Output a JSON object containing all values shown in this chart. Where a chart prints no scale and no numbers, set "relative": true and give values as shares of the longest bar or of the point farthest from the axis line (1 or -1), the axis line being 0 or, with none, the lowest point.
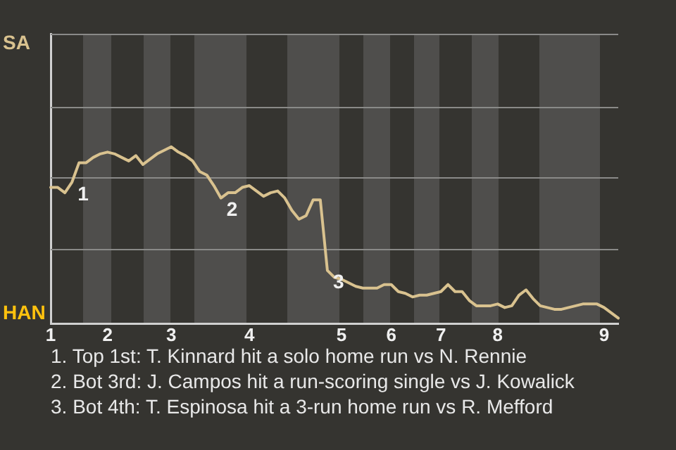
{
  "chart_data": {
    "type": "line",
    "relative": true,
    "categories": [
      "1",
      null,
      null,
      null,
      null,
      null,
      null,
      null,
      "2",
      null,
      null,
      null,
      null,
      null,
      null,
      null,
      null,
      "3",
      null,
      null,
      null,
      null,
      null,
      null,
      null,
      null,
      null,
      null,
      "4",
      null,
      null,
      null,
      null,
      null,
      null,
      null,
      null,
      null,
      null,
      null,
      null,
      "5",
      null,
      null,
      null,
      null,
      null,
      null,
      "6",
      null,
      null,
      null,
      null,
      null,
      null,
      "7",
      null,
      null,
      null,
      null,
      null,
      null,
      null,
      "8",
      null,
      null,
      null,
      null,
      null,
      null,
      null,
      null,
      null,
      null,
      null,
      null,
      null,
      null,
      "9",
      null,
      null
    ],
    "series": [
      {
        "color": "#d9c28f",
        "values": [
          0.77,
          0.77,
          0.74,
          0.8,
          0.91,
          0.91,
          0.94,
          0.96,
          0.97,
          0.96,
          0.94,
          0.92,
          0.95,
          0.9,
          0.93,
          0.96,
          0.98,
          1.0,
          0.97,
          0.95,
          0.92,
          0.86,
          0.84,
          0.78,
          0.71,
          0.74,
          0.74,
          0.77,
          0.78,
          0.75,
          0.72,
          0.74,
          0.75,
          0.71,
          0.64,
          0.59,
          0.61,
          0.7,
          0.7,
          0.3,
          0.26,
          0.25,
          0.23,
          0.21,
          0.2,
          0.2,
          0.2,
          0.22,
          0.22,
          0.18,
          0.17,
          0.15,
          0.16,
          0.16,
          0.17,
          0.18,
          0.22,
          0.18,
          0.18,
          0.13,
          0.1,
          0.1,
          0.1,
          0.11,
          0.09,
          0.1,
          0.16,
          0.19,
          0.14,
          0.1,
          0.09,
          0.08,
          0.08,
          0.09,
          0.1,
          0.11,
          0.11,
          0.11,
          0.09,
          0.06,
          0.03
        ]
      }
    ],
    "ref_lines": [
      {
        "axis": "y",
        "value": 0.42,
        "color": "#8a8a88"
      },
      {
        "axis": "y",
        "value": 0.83,
        "color": "#8a8a88"
      },
      {
        "axis": "y",
        "value": 1.23,
        "color": "#8a8a88"
      },
      {
        "axis": "y",
        "value": 1.64,
        "color": "#8a8a88"
      }
    ],
    "legend": false,
    "marker": "none",
    "line_style": "solid",
    "annotations": [
      "SA",
      "HAN",
      {
        "text": "1",
        "y": 0.8
      },
      {
        "text": "2",
        "y": 0.71
      },
      {
        "text": "3",
        "y": 0.3
      },
      "1. Top 1st: T. Kinnard hit a solo home run vs N. Rennie",
      "2. Bot 3rd: J. Campos hit a run-scoring single vs J. Kowalick",
      "3. Bot 4th: T. Espinosa hit a 3-run home run vs R. Mefford"
    ]
  }
}
